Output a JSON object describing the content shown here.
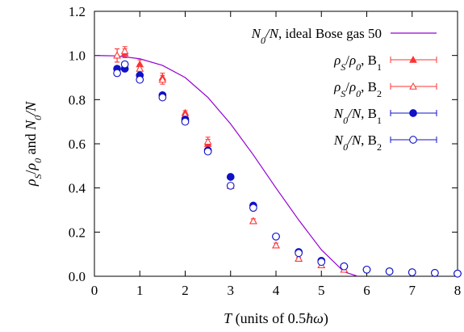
{
  "chart_data": {
    "type": "scatter",
    "xlabel": "T (units of 0.5ħω)",
    "ylabel": "ρS/ρ0 and N0/N",
    "xlim": [
      0,
      8
    ],
    "ylim": [
      0,
      1.2
    ],
    "xticks": [
      "0",
      "1",
      "2",
      "3",
      "4",
      "5",
      "6",
      "7",
      "8"
    ],
    "yticks": [
      "0.0",
      "0.2",
      "0.4",
      "0.6",
      "0.8",
      "1.0",
      "1.2"
    ],
    "grid": false,
    "legend_position": "top-right",
    "series": [
      {
        "name": "N0/N, ideal Bose gas 50",
        "kind": "line",
        "color": "#9400d3",
        "x": [
          0.0,
          0.5,
          1.0,
          1.5,
          2.0,
          2.5,
          3.0,
          3.5,
          4.0,
          4.5,
          5.0,
          5.5,
          5.8
        ],
        "y": [
          1.0,
          0.998,
          0.985,
          0.955,
          0.9,
          0.81,
          0.69,
          0.55,
          0.4,
          0.255,
          0.12,
          0.02,
          0.0
        ]
      },
      {
        "name": "ρS/ρ0, B1",
        "kind": "points",
        "marker": "filled-triangle",
        "color": "#ff3333",
        "x": [
          0.5,
          0.67,
          1.0,
          1.5,
          2.0,
          2.5,
          3.0,
          3.5,
          4.0,
          4.5,
          5.0,
          5.5
        ],
        "y": [
          1.0,
          1.01,
          0.96,
          0.9,
          0.74,
          0.6,
          0.41,
          0.25,
          0.14,
          0.08,
          0.05,
          0.03
        ],
        "err": [
          0.03,
          0.02,
          0.02,
          0.02,
          0.01,
          0.02,
          0.01,
          0.01,
          0.01,
          0.005,
          0.005,
          0.005
        ]
      },
      {
        "name": "ρS/ρ0, B2",
        "kind": "points",
        "marker": "open-triangle",
        "color": "#ff3333",
        "x": [
          0.5,
          0.67,
          1.0,
          1.5,
          2.0,
          2.5,
          3.0,
          3.5,
          4.0,
          4.5,
          5.0,
          5.5
        ],
        "y": [
          1.0,
          1.02,
          0.94,
          0.89,
          0.73,
          0.61,
          0.41,
          0.25,
          0.14,
          0.08,
          0.05,
          0.03
        ],
        "err": [
          0.03,
          0.02,
          0.02,
          0.02,
          0.01,
          0.02,
          0.01,
          0.01,
          0.01,
          0.005,
          0.005,
          0.005
        ]
      },
      {
        "name": "N0/N, B1",
        "kind": "points",
        "marker": "filled-circle",
        "color": "#1010c8",
        "x": [
          0.5,
          0.67,
          1.0,
          1.5,
          2.0,
          2.5,
          3.0,
          3.5,
          4.0,
          4.5,
          5.0,
          5.5,
          6.0,
          6.5,
          7.0,
          7.5,
          8.0
        ],
        "y": [
          0.94,
          0.94,
          0.91,
          0.82,
          0.71,
          0.57,
          0.45,
          0.32,
          0.18,
          0.11,
          0.07,
          0.045,
          0.03,
          0.022,
          0.018,
          0.015,
          0.012
        ]
      },
      {
        "name": "N0/N, B2",
        "kind": "points",
        "marker": "open-circle",
        "color": "#1010c8",
        "x": [
          0.5,
          0.67,
          1.0,
          1.5,
          2.0,
          2.5,
          3.0,
          3.5,
          4.0,
          4.5,
          5.0,
          5.5,
          6.0,
          6.5,
          7.0,
          7.5,
          8.0
        ],
        "y": [
          0.92,
          0.96,
          0.89,
          0.81,
          0.7,
          0.565,
          0.41,
          0.31,
          0.18,
          0.105,
          0.065,
          0.045,
          0.03,
          0.022,
          0.018,
          0.015,
          0.012
        ]
      }
    ]
  }
}
